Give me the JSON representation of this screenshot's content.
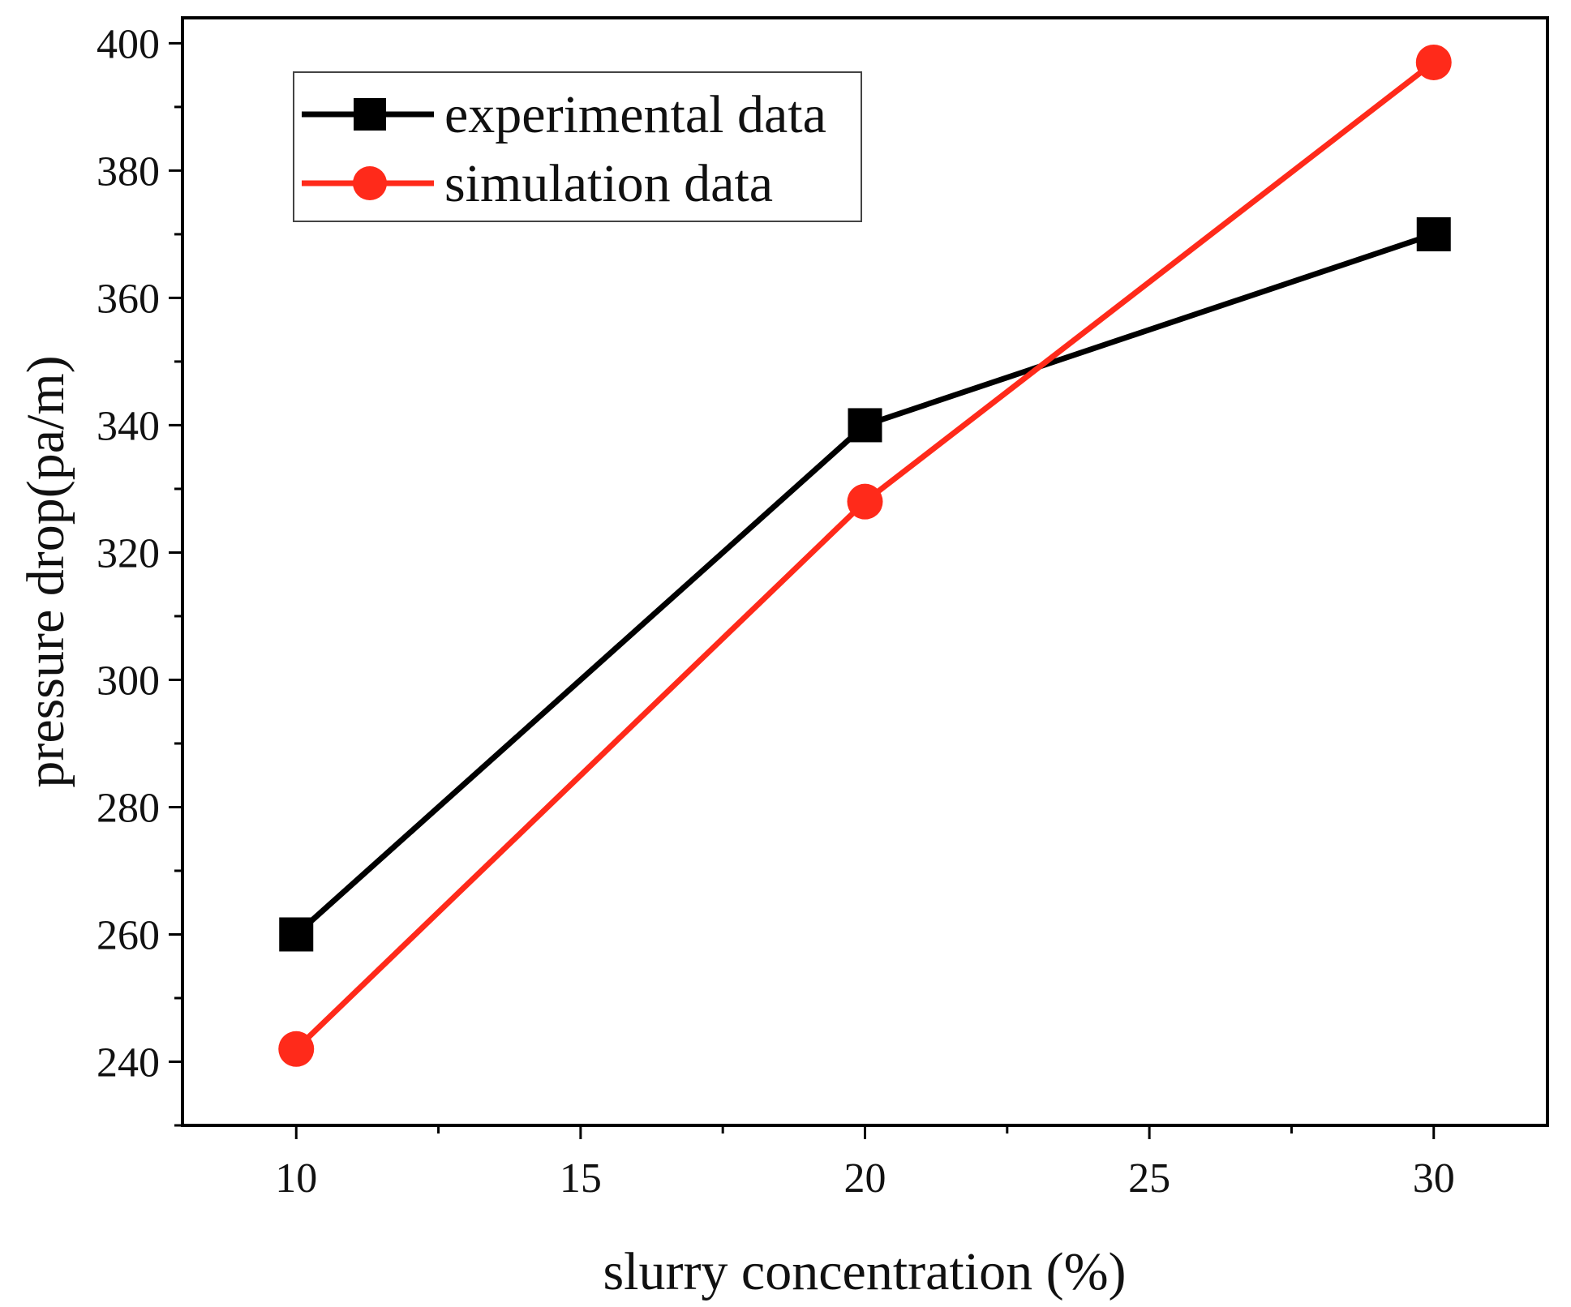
{
  "chart_data": {
    "type": "line",
    "title": "",
    "xlabel": "slurry concentration (%)",
    "ylabel": "pressure drop(pa/m)",
    "xlim": [
      8,
      32
    ],
    "ylim": [
      230,
      404
    ],
    "xticks": [
      10,
      15,
      20,
      25,
      30
    ],
    "xtick_labels": [
      "10",
      "15",
      "20",
      "25",
      "30"
    ],
    "yticks": [
      240,
      260,
      280,
      300,
      320,
      340,
      360,
      380,
      400
    ],
    "ytick_labels": [
      "240",
      "260",
      "280",
      "300",
      "320",
      "340",
      "360",
      "380",
      "400"
    ],
    "x": [
      10,
      20,
      30
    ],
    "series": [
      {
        "name": "experimental data",
        "values": [
          260,
          340,
          370
        ],
        "color": "#000000",
        "marker": "square"
      },
      {
        "name": "simulation data",
        "values": [
          242,
          328,
          397
        ],
        "color": "#ff2a1a",
        "marker": "circle"
      }
    ],
    "legend": {
      "location": "top-left"
    },
    "grid": false
  }
}
